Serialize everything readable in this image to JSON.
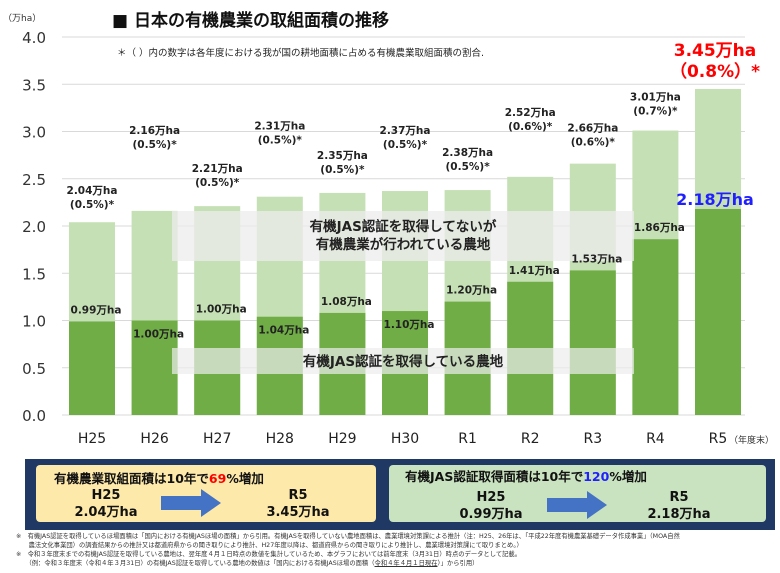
{
  "title": "■ 日本の有機農業の取組面積の推移",
  "note": "＊（ ）内の数字は各年度における我が国の耕地面積に占める有機農業取組面積の割合.",
  "colors": {
    "total": "#c5e0b4",
    "jas": "#70ad47",
    "highlight_red": "#ff0000",
    "highlight_blue": "#1f1fff",
    "panel": "#1f3864"
  },
  "chart_data": {
    "type": "bar",
    "stacked": "overlay",
    "ylabel": "（万ha）",
    "xunit": "（年度末）",
    "ylim": [
      0,
      4.0
    ],
    "yticks": [
      "0.0",
      "0.5",
      "1.0",
      "1.5",
      "2.0",
      "2.5",
      "3.0",
      "3.5",
      "4.0"
    ],
    "grid": true,
    "categories": [
      "H25",
      "H26",
      "H27",
      "H28",
      "H29",
      "H30",
      "R1",
      "R2",
      "R3",
      "R4",
      "R5"
    ],
    "series": [
      {
        "values": [
          2.04,
          2.16,
          2.21,
          2.31,
          2.35,
          2.37,
          2.38,
          2.52,
          2.66,
          3.01,
          3.45
        ],
        "labels": [
          "2.04万ha",
          "2.16万ha",
          "2.21万ha",
          "2.31万ha",
          "2.35万ha",
          "2.37万ha",
          "2.38万ha",
          "2.52万ha",
          "2.66万ha",
          "3.01万ha",
          "3.45万ha"
        ],
        "pct_labels": [
          "(0.5%)*",
          "(0.5%)*",
          "(0.5%)*",
          "(0.5%)*",
          "(0.5%)*",
          "(0.5%)*",
          "(0.5%)*",
          "(0.6%)*",
          "(0.6%)*",
          "(0.7%)*",
          "（0.8%）*"
        ]
      },
      {
        "values": [
          0.99,
          1.0,
          1.0,
          1.04,
          1.08,
          1.1,
          1.2,
          1.41,
          1.53,
          1.86,
          2.18
        ],
        "labels": [
          "0.99万ha",
          "1.00万ha",
          "1.00万ha",
          "1.04万ha",
          "1.08万ha",
          "1.10万ha",
          "1.20万ha",
          "1.41万ha",
          "1.53万ha",
          "1.86万ha",
          "2.18万ha"
        ]
      }
    ],
    "annotations": [
      "有機JAS認証を取得してないが",
      "有機農業が行われている農地",
      "有機JAS認証を取得している農地"
    ]
  },
  "summary": {
    "left": {
      "head_pre": "有機農業取組面積は10年で",
      "head_num": "69",
      "head_post": "%増加",
      "from_year": "H25",
      "from_val": "2.04万ha",
      "to_year": "R5",
      "to_val": "3.45万ha"
    },
    "right": {
      "head_pre": "有機JAS認証取得面積は10年で",
      "head_num": "120",
      "head_post": "%増加",
      "from_year": "H25",
      "from_val": "0.99万ha",
      "to_year": "R5",
      "to_val": "2.18万ha"
    }
  },
  "footnotes": [
    "※　有機JAS認証を取得しているほ場面積は「国内における有機JASほ場の面積」から引用。有機JASを取得していない農地面積は、農業環境対策課による推計（注：H25、26年は、「平成22年度有機農業基礎データ作成事業」（MOA自然",
    "　　農法文化事業団）の調査結果からの推計又は都道府県からの聞き取りにより推計、H27年度以降は、都道府県からの聞き取りにより推計し、農業環境対策課にて取りまとめ。）",
    "※　令和３年度末までの有機JAS認証を取得している農地は、翌年度４月１日時点の数値を集計しているため、本グラフにおいては前年度末（3月31日）時点のデータとして記載。",
    "　　（例：令和３年度末（令和４年３月31日）の有機JAS認証を取得している農地の数値は「国内における有機JASほ場の面積（",
    "令和４年４月１日現在",
    "）」から引用）"
  ]
}
